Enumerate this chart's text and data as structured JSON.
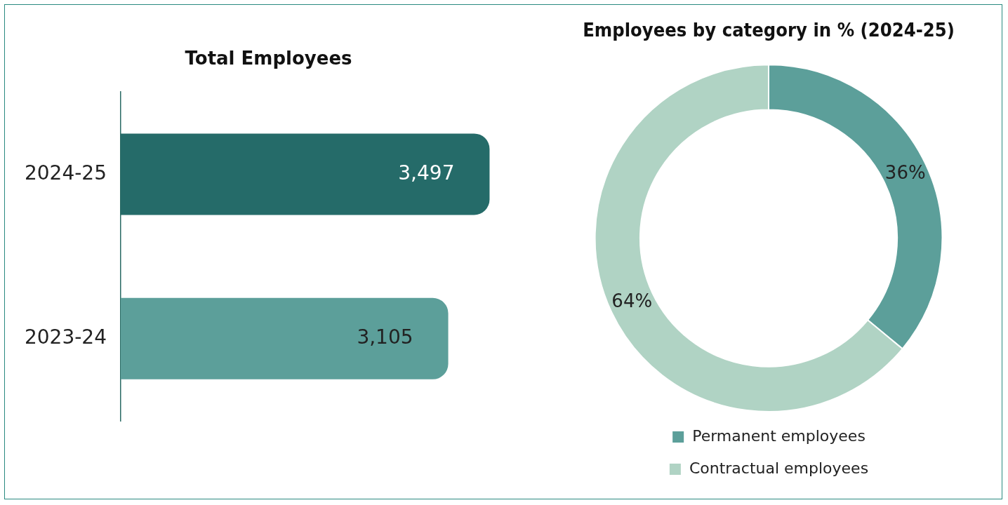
{
  "chart_data": [
    {
      "type": "bar",
      "orientation": "horizontal",
      "title": "Total Employees",
      "categories": [
        "2024-25",
        "2023-24"
      ],
      "values": [
        3497,
        3105
      ],
      "colors": [
        "#256b69",
        "#5c9f9a"
      ],
      "value_labels": [
        "3,497",
        "3,105"
      ],
      "legend": false
    },
    {
      "type": "donut",
      "title": "Employees by category in % (2024-25)",
      "categories": [
        "Permanent employees",
        "Contractual employees"
      ],
      "values": [
        36,
        64
      ],
      "colors": [
        "#5c9f9a",
        "#b0d3c4"
      ],
      "value_labels": [
        "36%",
        "64%"
      ],
      "legend": "bottom"
    }
  ]
}
